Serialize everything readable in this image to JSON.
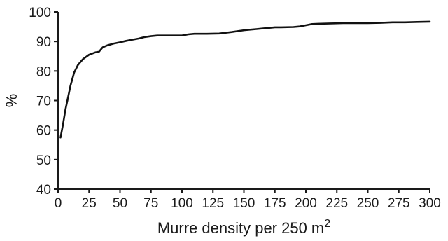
{
  "chart_data": {
    "type": "line",
    "title": "",
    "xlabel": "Murre density per 250 m",
    "xlabel_superscript": "2",
    "ylabel": "%",
    "xlim": [
      0,
      300
    ],
    "ylim": [
      40,
      100
    ],
    "xticks": [
      0,
      25,
      50,
      75,
      100,
      125,
      150,
      175,
      200,
      225,
      250,
      275,
      300
    ],
    "yticks": [
      40,
      50,
      60,
      70,
      80,
      90,
      100
    ],
    "grid": false,
    "legend": "none",
    "series": [
      {
        "x": [
          2,
          4,
          6,
          8,
          10,
          13,
          16,
          20,
          25,
          30,
          33,
          36,
          40,
          45,
          50,
          55,
          60,
          65,
          70,
          75,
          80,
          90,
          100,
          105,
          110,
          120,
          130,
          140,
          150,
          160,
          170,
          175,
          180,
          190,
          195,
          200,
          205,
          210,
          220,
          230,
          250,
          260,
          270,
          280,
          290,
          300
        ],
        "y": [
          57.5,
          62,
          67,
          71,
          75,
          79.5,
          82,
          84,
          85.5,
          86.3,
          86.5,
          88,
          88.7,
          89.3,
          89.7,
          90.2,
          90.6,
          91,
          91.5,
          91.8,
          92,
          92,
          92,
          92.4,
          92.6,
          92.6,
          92.7,
          93.2,
          93.8,
          94.2,
          94.6,
          94.8,
          94.8,
          94.9,
          95.1,
          95.5,
          95.9,
          96,
          96.1,
          96.2,
          96.2,
          96.3,
          96.5,
          96.5,
          96.6,
          96.7
        ]
      }
    ]
  }
}
